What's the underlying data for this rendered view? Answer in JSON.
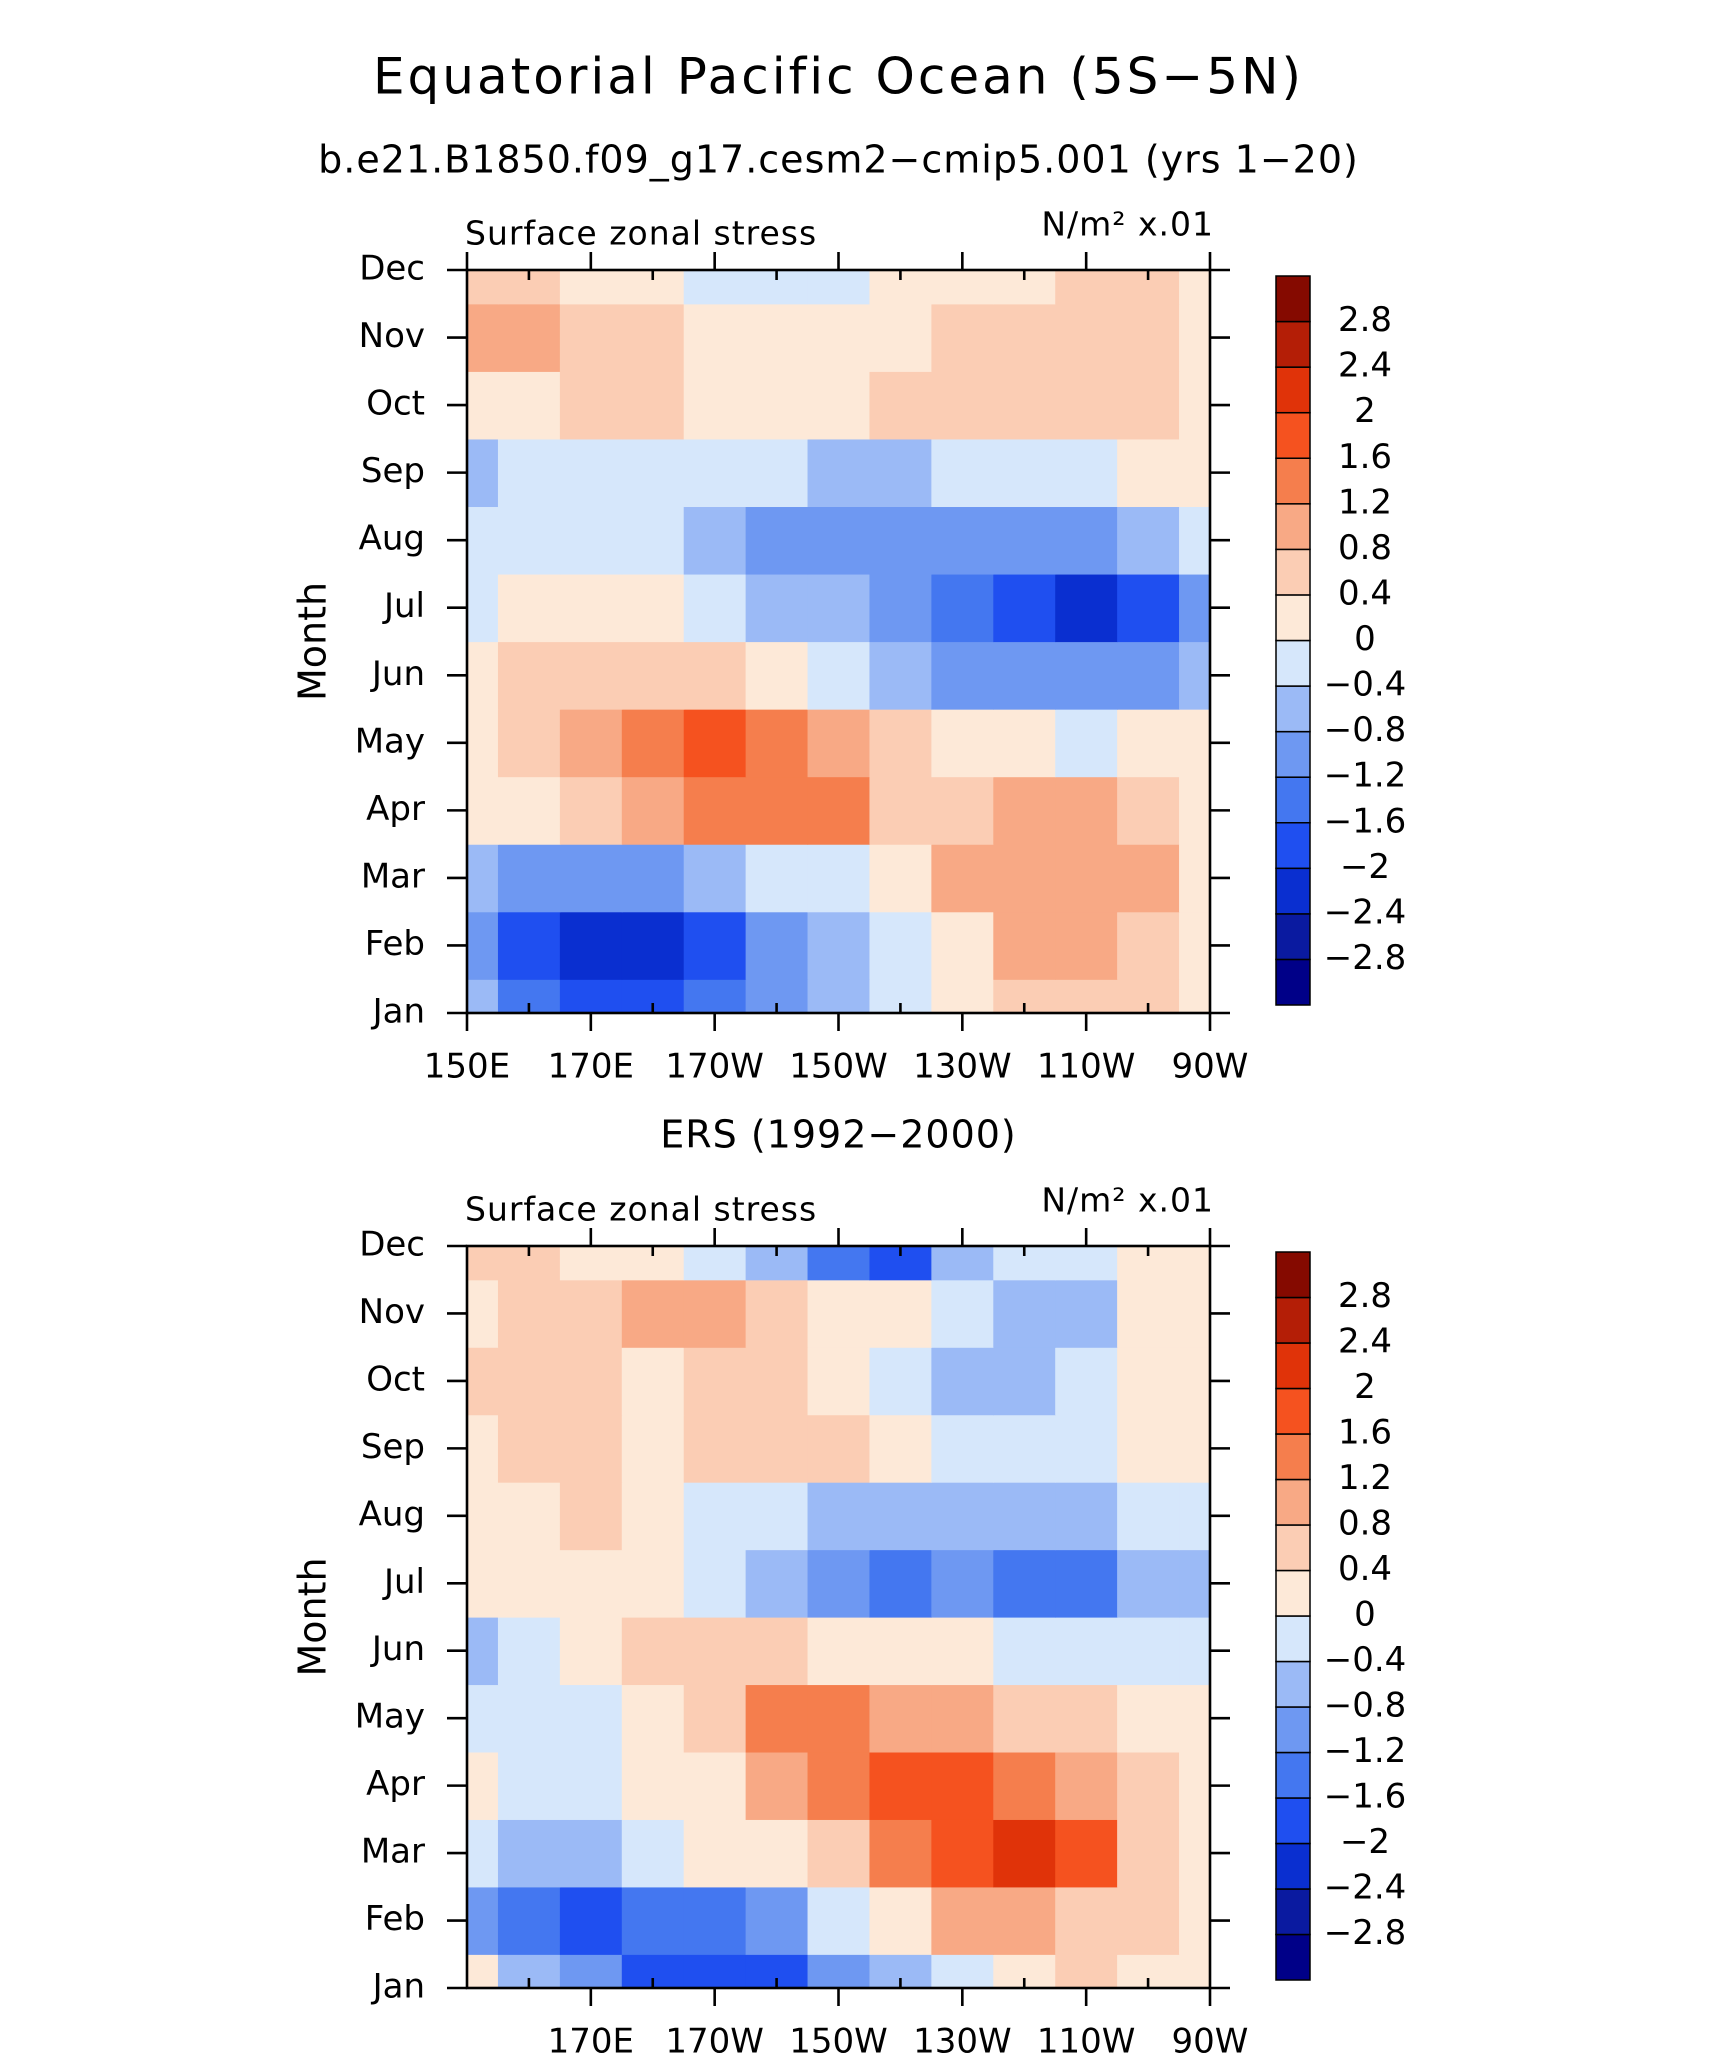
{
  "chart_data": [
    {
      "type": "contour",
      "title": "Equatorial Pacific Ocean (5S−5N)",
      "subtitle": "b.e21.B1850.f09_g17.cesm2−cmip5.001 (yrs 1−20)",
      "left_label": "Surface zonal stress",
      "right_label": "N/m² x.01",
      "ylabel": "Month",
      "x": [
        150,
        160,
        170,
        180,
        190,
        200,
        210,
        220,
        230,
        240,
        250,
        260,
        270
      ],
      "xlim": [
        150,
        270
      ],
      "xticks": [
        {
          "value": 150,
          "label": "150E"
        },
        {
          "value": 170,
          "label": "170E"
        },
        {
          "value": 190,
          "label": "170W"
        },
        {
          "value": 210,
          "label": "150W"
        },
        {
          "value": 230,
          "label": "130W"
        },
        {
          "value": 250,
          "label": "110W"
        },
        {
          "value": 270,
          "label": "90W"
        }
      ],
      "xminorticks": [
        160,
        180,
        200,
        220,
        240,
        260
      ],
      "categories": [
        "Jan",
        "Feb",
        "Mar",
        "Apr",
        "May",
        "Jun",
        "Jul",
        "Aug",
        "Sep",
        "Oct",
        "Nov",
        "Dec"
      ],
      "z": [
        [
          -0.6,
          -1.4,
          -1.8,
          -1.8,
          -1.4,
          -1.0,
          -0.6,
          -0.2,
          0.2,
          0.6,
          0.6,
          0.6,
          0.2
        ],
        [
          -1.0,
          -1.8,
          -2.1,
          -2.1,
          -1.8,
          -1.2,
          -0.7,
          -0.3,
          0.3,
          0.9,
          0.9,
          0.7,
          0.2
        ],
        [
          -0.6,
          -1.0,
          -1.0,
          -0.9,
          -0.7,
          -0.4,
          -0.1,
          0.3,
          0.9,
          0.9,
          1.0,
          0.9,
          0.3
        ],
        [
          0.1,
          0.3,
          0.6,
          0.9,
          1.3,
          1.3,
          1.2,
          0.6,
          0.6,
          0.8,
          0.9,
          0.7,
          0.2
        ],
        [
          0.2,
          0.5,
          1.0,
          1.4,
          1.7,
          1.3,
          0.8,
          0.4,
          0.1,
          0.0,
          -0.1,
          0.0,
          0.1
        ],
        [
          0.1,
          0.4,
          0.7,
          0.6,
          0.4,
          0.1,
          -0.2,
          -0.6,
          -0.9,
          -1.2,
          -1.2,
          -1.0,
          -0.5
        ],
        [
          -0.1,
          0.1,
          0.2,
          0.0,
          -0.3,
          -0.6,
          -0.8,
          -1.2,
          -1.6,
          -2.0,
          -2.3,
          -1.8,
          -1.0
        ],
        [
          -0.3,
          -0.2,
          -0.2,
          -0.4,
          -0.7,
          -0.9,
          -1.0,
          -1.1,
          -1.2,
          -1.0,
          -0.9,
          -0.6,
          -0.2
        ],
        [
          -0.5,
          -0.2,
          -0.1,
          -0.1,
          -0.2,
          -0.4,
          -0.5,
          -0.5,
          -0.4,
          -0.2,
          -0.1,
          0.0,
          0.2
        ],
        [
          0.2,
          0.3,
          0.4,
          0.4,
          0.3,
          0.3,
          0.3,
          0.4,
          0.5,
          0.5,
          0.5,
          0.4,
          0.3
        ],
        [
          0.9,
          0.9,
          0.7,
          0.4,
          0.3,
          0.3,
          0.3,
          0.3,
          0.4,
          0.5,
          0.5,
          0.4,
          0.3
        ],
        [
          0.6,
          0.5,
          0.3,
          0.1,
          -0.2,
          -0.4,
          -0.3,
          0.0,
          0.2,
          0.3,
          0.4,
          0.4,
          0.3
        ]
      ],
      "levels": [
        {
          "value": -2.8,
          "label": "−2.8"
        },
        {
          "value": -2.4,
          "label": "−2.4"
        },
        {
          "value": -2,
          "label": "−2"
        },
        {
          "value": -1.6,
          "label": "−1.6"
        },
        {
          "value": -1.2,
          "label": "−1.2"
        },
        {
          "value": -0.8,
          "label": "−0.8"
        },
        {
          "value": -0.4,
          "label": "−0.4"
        },
        0,
        0.4,
        0.8,
        1.2,
        1.6,
        2,
        2.4,
        2.8
      ],
      "colors": [
        "#000088",
        "#0a1aa0",
        "#0a2fd0",
        "#1f4ff0",
        "#4477f0",
        "#6e98f2",
        "#9bbaf6",
        "#d6e7fb",
        "#fde9d8",
        "#fbcdb4",
        "#f8a985",
        "#f57e4d",
        "#f5521f",
        "#e03309",
        "#b41e06",
        "#850a00"
      ]
    },
    {
      "type": "contour",
      "title": "ERS (1992−2000)",
      "left_label": "Surface zonal stress",
      "right_label": "N/m² x.01",
      "ylabel": "Month",
      "x": [
        150,
        160,
        170,
        180,
        190,
        200,
        210,
        220,
        230,
        240,
        250,
        260,
        270
      ],
      "xlim": [
        150,
        270
      ],
      "xticks": [
        {
          "value": 170,
          "label": "170E"
        },
        {
          "value": 190,
          "label": "170W"
        },
        {
          "value": 210,
          "label": "150W"
        },
        {
          "value": 230,
          "label": "130W"
        },
        {
          "value": 250,
          "label": "110W"
        },
        {
          "value": 270,
          "label": "90W"
        }
      ],
      "xminorticks": [
        160,
        180,
        200,
        220,
        240,
        260
      ],
      "categories": [
        "Jan",
        "Feb",
        "Mar",
        "Apr",
        "May",
        "Jun",
        "Jul",
        "Aug",
        "Sep",
        "Oct",
        "Nov",
        "Dec"
      ],
      "z": [
        [
          0.2,
          -0.6,
          -1.2,
          -1.8,
          -2.0,
          -1.8,
          -1.2,
          -0.8,
          -0.4,
          0.0,
          0.4,
          0.2,
          0.0
        ],
        [
          -1.2,
          -1.6,
          -1.8,
          -1.6,
          -1.4,
          -1.0,
          -0.4,
          0.2,
          0.8,
          1.0,
          0.6,
          0.4,
          0.2
        ],
        [
          -0.4,
          -0.8,
          -0.6,
          -0.3,
          0.0,
          0.2,
          0.6,
          1.2,
          1.6,
          2.0,
          1.6,
          0.6,
          0.1
        ],
        [
          0.0,
          -0.3,
          -0.2,
          0.0,
          0.3,
          0.8,
          1.4,
          1.6,
          1.8,
          1.4,
          1.0,
          0.5,
          0.1
        ],
        [
          -0.2,
          -0.2,
          -0.1,
          0.2,
          0.6,
          1.4,
          1.2,
          1.0,
          0.8,
          0.6,
          0.5,
          0.3,
          0.0
        ],
        [
          -0.6,
          -0.2,
          0.2,
          0.4,
          0.5,
          0.4,
          0.3,
          0.2,
          0.0,
          -0.2,
          -0.3,
          -0.4,
          -0.3
        ],
        [
          0.0,
          0.2,
          0.3,
          0.1,
          -0.2,
          -0.6,
          -1.0,
          -1.6,
          -1.2,
          -1.4,
          -1.4,
          -0.8,
          -0.6
        ],
        [
          0.1,
          0.3,
          0.4,
          0.2,
          -0.1,
          -0.2,
          -0.5,
          -0.7,
          -0.8,
          -0.8,
          -0.6,
          -0.4,
          -0.2
        ],
        [
          0.2,
          0.4,
          0.4,
          0.2,
          0.6,
          0.7,
          0.5,
          0.2,
          -0.2,
          -0.3,
          -0.2,
          0.1,
          0.2
        ],
        [
          0.4,
          0.6,
          0.5,
          0.3,
          0.5,
          0.4,
          0.2,
          -0.1,
          -0.6,
          -0.8,
          -0.4,
          0.0,
          0.2
        ],
        [
          0.3,
          0.6,
          0.6,
          0.9,
          0.8,
          0.7,
          0.3,
          0.1,
          -0.4,
          -0.6,
          -0.5,
          0.1,
          0.2
        ],
        [
          0.6,
          0.4,
          0.2,
          0.1,
          -0.2,
          -0.8,
          -1.6,
          -1.8,
          -0.8,
          -0.4,
          -0.2,
          0.2,
          0.2
        ]
      ],
      "levels": [
        {
          "value": -2.8,
          "label": "−2.8"
        },
        {
          "value": -2.4,
          "label": "−2.4"
        },
        {
          "value": -2,
          "label": "−2"
        },
        {
          "value": -1.6,
          "label": "−1.6"
        },
        {
          "value": -1.2,
          "label": "−1.2"
        },
        {
          "value": -0.8,
          "label": "−0.8"
        },
        {
          "value": -0.4,
          "label": "−0.4"
        },
        0,
        0.4,
        0.8,
        1.2,
        1.6,
        2,
        2.4,
        2.8
      ],
      "colors": [
        "#000088",
        "#0a1aa0",
        "#0a2fd0",
        "#1f4ff0",
        "#4477f0",
        "#6e98f2",
        "#9bbaf6",
        "#d6e7fb",
        "#fde9d8",
        "#fbcdb4",
        "#f8a985",
        "#f57e4d",
        "#f5521f",
        "#e03309",
        "#b41e06",
        "#850a00"
      ]
    }
  ]
}
